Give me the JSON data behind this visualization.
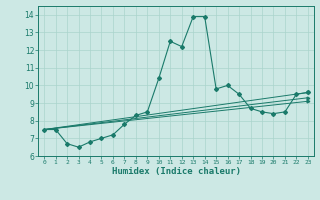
{
  "xlabel": "Humidex (Indice chaleur)",
  "ylabel": "",
  "bg_color": "#cce8e4",
  "grid_color": "#aad4cc",
  "line_color": "#1a7a6a",
  "xlim": [
    -0.5,
    23.5
  ],
  "ylim": [
    6,
    14.5
  ],
  "yticks": [
    6,
    7,
    8,
    9,
    10,
    11,
    12,
    13,
    14
  ],
  "xticks": [
    0,
    1,
    2,
    3,
    4,
    5,
    6,
    7,
    8,
    9,
    10,
    11,
    12,
    13,
    14,
    15,
    16,
    17,
    18,
    19,
    20,
    21,
    22,
    23
  ],
  "series_main": {
    "x": [
      0,
      1,
      2,
      3,
      4,
      5,
      6,
      7,
      8,
      9,
      10,
      11,
      12,
      13,
      14,
      15,
      16,
      17,
      18,
      19,
      20,
      21,
      22,
      23
    ],
    "y": [
      7.5,
      7.5,
      6.7,
      6.5,
      6.8,
      7.0,
      7.2,
      7.8,
      8.3,
      8.5,
      10.4,
      12.5,
      12.2,
      13.9,
      13.9,
      9.8,
      10.0,
      9.5,
      8.7,
      8.5,
      8.4,
      8.5,
      9.5,
      9.6
    ]
  },
  "trend_lines": [
    {
      "x": [
        0,
        23
      ],
      "y": [
        7.5,
        9.6
      ]
    },
    {
      "x": [
        0,
        23
      ],
      "y": [
        7.5,
        9.3
      ]
    },
    {
      "x": [
        0,
        23
      ],
      "y": [
        7.5,
        9.1
      ]
    }
  ]
}
